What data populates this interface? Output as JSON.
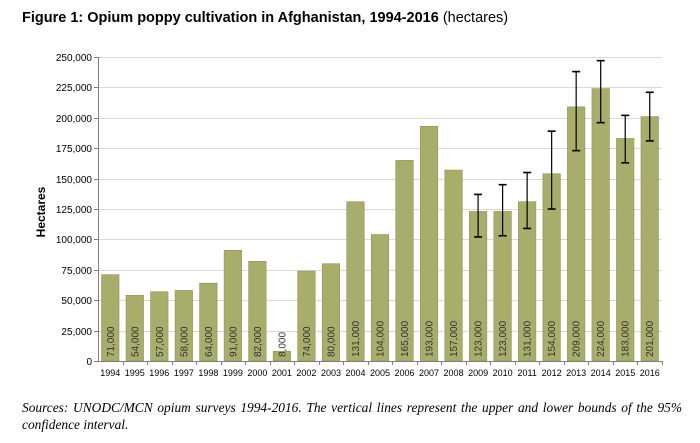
{
  "chart_data": {
    "type": "bar",
    "title": "Figure 1: Opium poppy cultivation in Afghanistan, 1994-2016",
    "title_unit": "(hectares)",
    "ylabel": "Hectares",
    "xlabel": "",
    "ylim": [
      0,
      250000
    ],
    "yticks": [
      0,
      25000,
      50000,
      75000,
      100000,
      125000,
      150000,
      175000,
      200000,
      225000,
      250000
    ],
    "ytick_labels": [
      "0",
      "25,000",
      "50,000",
      "75,000",
      "100,000",
      "125,000",
      "150,000",
      "175,000",
      "200,000",
      "225,000",
      "250,000"
    ],
    "grid": true,
    "legend": "none",
    "categories": [
      "1994",
      "1995",
      "1996",
      "1997",
      "1998",
      "1999",
      "2000",
      "2001",
      "2002",
      "2003",
      "2004",
      "2005",
      "2006",
      "2007",
      "2008",
      "2009",
      "2010",
      "2011",
      "2012",
      "2013",
      "2014",
      "2015",
      "2016"
    ],
    "values": [
      71000,
      54000,
      57000,
      58000,
      64000,
      91000,
      82000,
      8000,
      74000,
      80000,
      131000,
      104000,
      165000,
      193000,
      157000,
      123000,
      123000,
      131000,
      154000,
      209000,
      224000,
      183000,
      201000
    ],
    "value_labels": [
      "71,000",
      "54,000",
      "57,000",
      "58,000",
      "64,000",
      "91,000",
      "82,000",
      "8,000",
      "74,000",
      "80,000",
      "131,000",
      "104,000",
      "165,000",
      "193,000",
      "157,000",
      "123,000",
      "123,000",
      "131,000",
      "154,000",
      "209,000",
      "224,000",
      "183,000",
      "201,000"
    ],
    "error_bars": [
      {
        "category": "2009",
        "low": 102000,
        "high": 137000
      },
      {
        "category": "2010",
        "low": 103000,
        "high": 145000
      },
      {
        "category": "2011",
        "low": 109000,
        "high": 155000
      },
      {
        "category": "2012",
        "low": 125000,
        "high": 189000
      },
      {
        "category": "2013",
        "low": 173000,
        "high": 238000
      },
      {
        "category": "2014",
        "low": 196000,
        "high": 247000
      },
      {
        "category": "2015",
        "low": 163000,
        "high": 202000
      },
      {
        "category": "2016",
        "low": 181000,
        "high": 221000
      }
    ],
    "colors": {
      "bar_fill": "#a9ad6c",
      "bar_stroke": "#8f9356",
      "grid": "#d9d9d9",
      "axis": "#808080",
      "error_bar": "#000000",
      "label": "#333333"
    }
  },
  "caption": "Sources: UNODC/MCN opium surveys 1994-2016. The vertical lines represent the upper and lower bounds of the 95% confidence interval."
}
